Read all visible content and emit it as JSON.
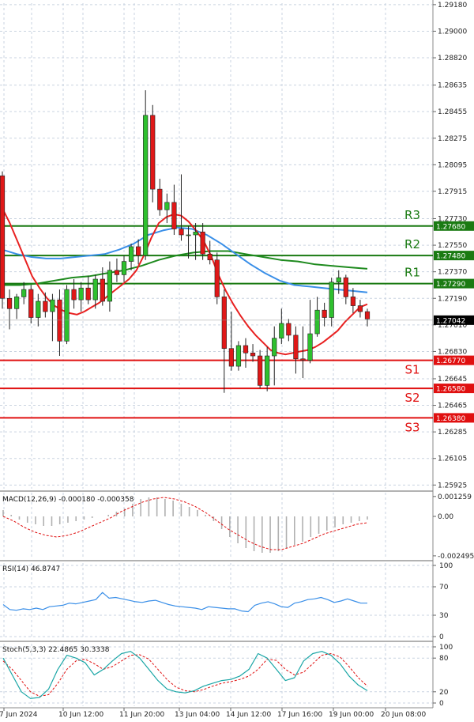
{
  "chart_data": {
    "type": "candlestick",
    "main": {
      "y_ticks": [
        "1.29180",
        "1.29000",
        "1.28820",
        "1.28635",
        "1.28455",
        "1.28275",
        "1.28095",
        "1.27915",
        "1.27730",
        "1.27550",
        "1.27370",
        "1.27190",
        "1.27010",
        "1.26830",
        "1.26645",
        "1.26465",
        "1.26285",
        "1.26105",
        "1.25925"
      ],
      "ylim": [
        1.259,
        1.2919
      ],
      "current_price": "1.27042",
      "x_labels": [
        "7 Jun 2024",
        "10 Jun 12:00",
        "11 Jun 20:00",
        "13 Jun 04:00",
        "14 Jun 12:00",
        "17 Jun 16:00",
        "19 Jun 00:00",
        "20 Jun 08:00"
      ],
      "levels": [
        {
          "name": "R3",
          "value": "1.27680",
          "color": "#1a7a12"
        },
        {
          "name": "R2",
          "value": "1.27480",
          "color": "#1a7a12"
        },
        {
          "name": "R1",
          "value": "1.27290",
          "color": "#1a7a12"
        },
        {
          "name": "S1",
          "value": "1.26770",
          "color": "#e01010"
        },
        {
          "name": "S2",
          "value": "1.26580",
          "color": "#e01010"
        },
        {
          "name": "S3",
          "value": "1.26380",
          "color": "#e01010"
        }
      ],
      "candles": [
        [
          1.2802,
          1.2805,
          1.2712,
          1.2719
        ],
        [
          1.2719,
          1.2725,
          1.2698,
          1.2712
        ],
        [
          1.2712,
          1.2722,
          1.2705,
          1.272
        ],
        [
          1.272,
          1.273,
          1.2715,
          1.2725
        ],
        [
          1.2725,
          1.2728,
          1.2702,
          1.2706
        ],
        [
          1.2706,
          1.2722,
          1.27,
          1.2717
        ],
        [
          1.2717,
          1.2723,
          1.2706,
          1.271
        ],
        [
          1.271,
          1.2722,
          1.269,
          1.2718
        ],
        [
          1.2718,
          1.2725,
          1.268,
          1.269
        ],
        [
          1.269,
          1.2728,
          1.2688,
          1.2725
        ],
        [
          1.2725,
          1.2732,
          1.2712,
          1.2718
        ],
        [
          1.2718,
          1.273,
          1.271,
          1.2726
        ],
        [
          1.2726,
          1.2734,
          1.2715,
          1.2718
        ],
        [
          1.2718,
          1.2735,
          1.2712,
          1.2732
        ],
        [
          1.2732,
          1.274,
          1.2714,
          1.2717
        ],
        [
          1.2717,
          1.2744,
          1.271,
          1.2738
        ],
        [
          1.2738,
          1.2746,
          1.273,
          1.2735
        ],
        [
          1.2735,
          1.2748,
          1.273,
          1.2744
        ],
        [
          1.2744,
          1.2756,
          1.2738,
          1.2754
        ],
        [
          1.2754,
          1.2759,
          1.2742,
          1.2748
        ],
        [
          1.2748,
          1.286,
          1.2745,
          1.2843
        ],
        [
          1.2843,
          1.285,
          1.2784,
          1.2793
        ],
        [
          1.2793,
          1.28,
          1.2775,
          1.2779
        ],
        [
          1.2779,
          1.279,
          1.277,
          1.2784
        ],
        [
          1.2784,
          1.2796,
          1.2762,
          1.2766
        ],
        [
          1.2766,
          1.2803,
          1.2758,
          1.2762
        ],
        [
          1.2762,
          1.2768,
          1.2746,
          1.2762
        ],
        [
          1.2762,
          1.277,
          1.2745,
          1.2764
        ],
        [
          1.2764,
          1.277,
          1.2745,
          1.2749
        ],
        [
          1.2749,
          1.2758,
          1.2742,
          1.2745
        ],
        [
          1.2745,
          1.275,
          1.2715,
          1.272
        ],
        [
          1.272,
          1.2725,
          1.2655,
          1.2685
        ],
        [
          1.2685,
          1.271,
          1.267,
          1.2673
        ],
        [
          1.2673,
          1.269,
          1.267,
          1.2687
        ],
        [
          1.2687,
          1.2692,
          1.2672,
          1.2682
        ],
        [
          1.2682,
          1.2688,
          1.2676,
          1.268
        ],
        [
          1.268,
          1.2684,
          1.2658,
          1.266
        ],
        [
          1.266,
          1.2686,
          1.2656,
          1.268
        ],
        [
          1.268,
          1.27,
          1.266,
          1.2692
        ],
        [
          1.2692,
          1.2712,
          1.2688,
          1.2702
        ],
        [
          1.2702,
          1.2705,
          1.269,
          1.2694
        ],
        [
          1.2694,
          1.27,
          1.2668,
          1.2678
        ],
        [
          1.2678,
          1.27,
          1.2665,
          1.2677
        ],
        [
          1.2677,
          1.2718,
          1.2675,
          1.2695
        ],
        [
          1.2695,
          1.272,
          1.2693,
          1.2711
        ],
        [
          1.2711,
          1.2716,
          1.27,
          1.2706
        ],
        [
          1.2706,
          1.2733,
          1.27,
          1.273
        ],
        [
          1.273,
          1.2738,
          1.2722,
          1.2733
        ],
        [
          1.2733,
          1.2735,
          1.2715,
          1.272
        ],
        [
          1.272,
          1.2726,
          1.2709,
          1.2714
        ],
        [
          1.2714,
          1.2718,
          1.2706,
          1.271
        ],
        [
          1.271,
          1.2712,
          1.27,
          1.2705
        ]
      ],
      "ma_red": [
        1.278,
        1.277,
        1.2758,
        1.2746,
        1.2734,
        1.2726,
        1.2719,
        1.2714,
        1.2711,
        1.2709,
        1.2708,
        1.271,
        1.2713,
        1.2716,
        1.272,
        1.2724,
        1.2728,
        1.2732,
        1.2738,
        1.2748,
        1.276,
        1.277,
        1.2774,
        1.2776,
        1.2775,
        1.2771,
        1.2765,
        1.2758,
        1.2748,
        1.2735,
        1.2724,
        1.2715,
        1.2707,
        1.27,
        1.2694,
        1.2689,
        1.2684,
        1.2682,
        1.2681,
        1.2682,
        1.2683,
        1.2684,
        1.2686,
        1.2689,
        1.2693,
        1.2697,
        1.2703,
        1.2708,
        1.2713,
        1.2715
      ],
      "ma_blue": [
        1.2752,
        1.2749,
        1.2747,
        1.2746,
        1.2746,
        1.2747,
        1.2748,
        1.2749,
        1.2752,
        1.2756,
        1.2762,
        1.2765,
        1.2767,
        1.2766,
        1.2762,
        1.2756,
        1.2749,
        1.2742,
        1.2736,
        1.2731,
        1.2728,
        1.2727,
        1.2726,
        1.2725,
        1.2724,
        1.2723
      ],
      "ma_green": [
        1.2728,
        1.2728,
        1.2729,
        1.2731,
        1.2733,
        1.2734,
        1.2736,
        1.2738,
        1.2741,
        1.2745,
        1.2748,
        1.275,
        1.2751,
        1.2751,
        1.2749,
        1.2747,
        1.2745,
        1.2744,
        1.2742,
        1.2741,
        1.274,
        1.2739
      ]
    },
    "macd": {
      "label": "MACD(12,26,9) -0.000180 -0.000358",
      "y_ticks": [
        "0.001259",
        "0.00",
        "-0.002495"
      ],
      "ylim": [
        -0.0027,
        0.0015
      ],
      "histogram": [
        0.0004,
        0.0001,
        -0.0002,
        -0.0004,
        -0.0005,
        -0.0006,
        -0.0006,
        -0.0005,
        -0.0004,
        -0.0003,
        -0.0002,
        -0.0001,
        0.0,
        0.0001,
        0.0003,
        0.0005,
        0.0008,
        0.0011,
        0.0012,
        0.0012,
        0.0011,
        0.001,
        0.0008,
        0.0006,
        0.0004,
        0.0001,
        -0.0003,
        -0.0008,
        -0.0013,
        -0.0017,
        -0.002,
        -0.0022,
        -0.0023,
        -0.0023,
        -0.0022,
        -0.002,
        -0.0018,
        -0.0016,
        -0.0013,
        -0.0011,
        -0.0009,
        -0.0007,
        -0.0005,
        -0.0004,
        -0.0003,
        -0.0002
      ],
      "signal": [
        0.0,
        -0.0003,
        -0.0007,
        -0.001,
        -0.0012,
        -0.0013,
        -0.0012,
        -0.001,
        -0.0007,
        -0.0004,
        -0.0001,
        0.0003,
        0.0006,
        0.0009,
        0.0011,
        0.0012,
        0.0011,
        0.0009,
        0.0006,
        0.0002,
        -0.0003,
        -0.0008,
        -0.0012,
        -0.0016,
        -0.0019,
        -0.0021,
        -0.0021,
        -0.0019,
        -0.0017,
        -0.0014,
        -0.0011,
        -0.0009,
        -0.0007,
        -0.0005,
        -0.0004
      ]
    },
    "rsi": {
      "label": "RSI(14) 46.8747",
      "y_ticks": [
        "100",
        "70",
        "30",
        "0"
      ],
      "ylim": [
        0,
        100
      ],
      "values": [
        45,
        38,
        37,
        39,
        38,
        40,
        38,
        42,
        43,
        44,
        47,
        46,
        48,
        50,
        52,
        62,
        54,
        55,
        53,
        51,
        49,
        48,
        50,
        51,
        48,
        45,
        43,
        42,
        41,
        40,
        38,
        42,
        41,
        40,
        39,
        39,
        36,
        35,
        44,
        47,
        49,
        46,
        42,
        41,
        47,
        49,
        52,
        53,
        55,
        52,
        48,
        50,
        53,
        50,
        47,
        47
      ]
    },
    "stoch": {
      "label": "Stoch(5,3,3) 22.4865 30.3338",
      "y_ticks": [
        "100",
        "80",
        "20",
        "0"
      ],
      "ylim": [
        0,
        100
      ],
      "k": [
        80,
        50,
        20,
        8,
        10,
        25,
        60,
        85,
        80,
        72,
        50,
        60,
        75,
        88,
        92,
        80,
        60,
        40,
        25,
        20,
        18,
        22,
        30,
        35,
        40,
        42,
        48,
        60,
        88,
        80,
        60,
        40,
        45,
        75,
        88,
        92,
        85,
        70,
        48,
        32,
        22
      ],
      "d": [
        75,
        60,
        40,
        20,
        12,
        15,
        35,
        60,
        75,
        78,
        70,
        60,
        65,
        75,
        85,
        86,
        78,
        60,
        42,
        28,
        22,
        20,
        24,
        30,
        35,
        38,
        42,
        48,
        60,
        78,
        76,
        60,
        50,
        55,
        70,
        85,
        88,
        82,
        65,
        45,
        30
      ]
    }
  }
}
